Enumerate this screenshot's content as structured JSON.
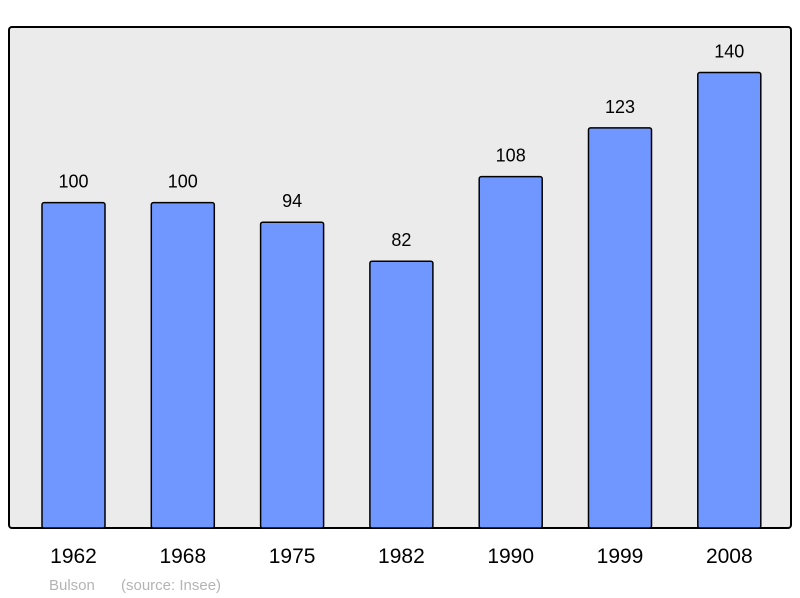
{
  "chart_data": {
    "type": "bar",
    "categories": [
      "1962",
      "1968",
      "1975",
      "1982",
      "1990",
      "1999",
      "2008"
    ],
    "values": [
      100,
      100,
      94,
      82,
      108,
      123,
      140
    ],
    "title": "",
    "xlabel": "",
    "ylabel": "",
    "ylim": [
      0,
      154
    ],
    "grid": false,
    "data_labels": true,
    "colors": {
      "bar": "#7097ff",
      "background": "#ebebeb",
      "border": "#000000"
    }
  },
  "footer": {
    "author": "Bulson",
    "source": "(source: Insee)"
  }
}
